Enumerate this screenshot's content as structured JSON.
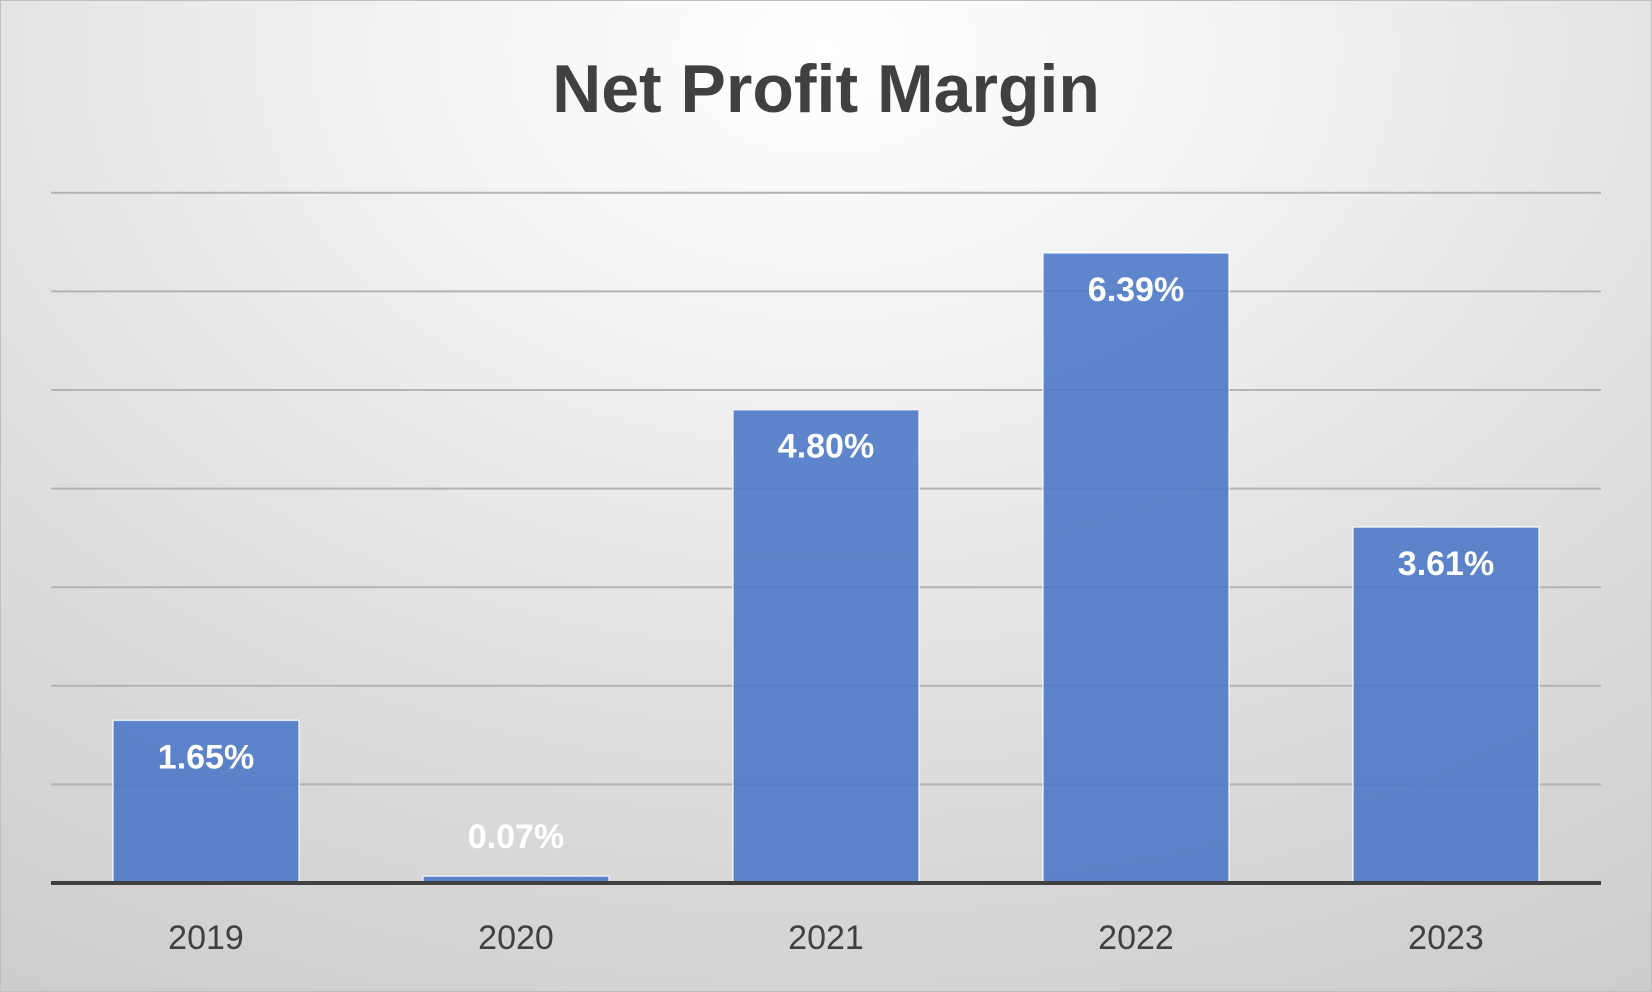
{
  "chart_data": {
    "type": "bar",
    "title": "Net Profit Margin",
    "xlabel": "",
    "ylabel": "",
    "categories": [
      "2019",
      "2020",
      "2021",
      "2022",
      "2023"
    ],
    "values": [
      1.65,
      0.07,
      4.8,
      6.39,
      3.61
    ],
    "data_labels": [
      "1.65%",
      "0.07%",
      "4.80%",
      "6.39%",
      "3.61%"
    ],
    "ylim": [
      0,
      7
    ],
    "y_gridline_step": 1,
    "grid": true,
    "legend": "none",
    "bar_color": "#4a76c6"
  }
}
